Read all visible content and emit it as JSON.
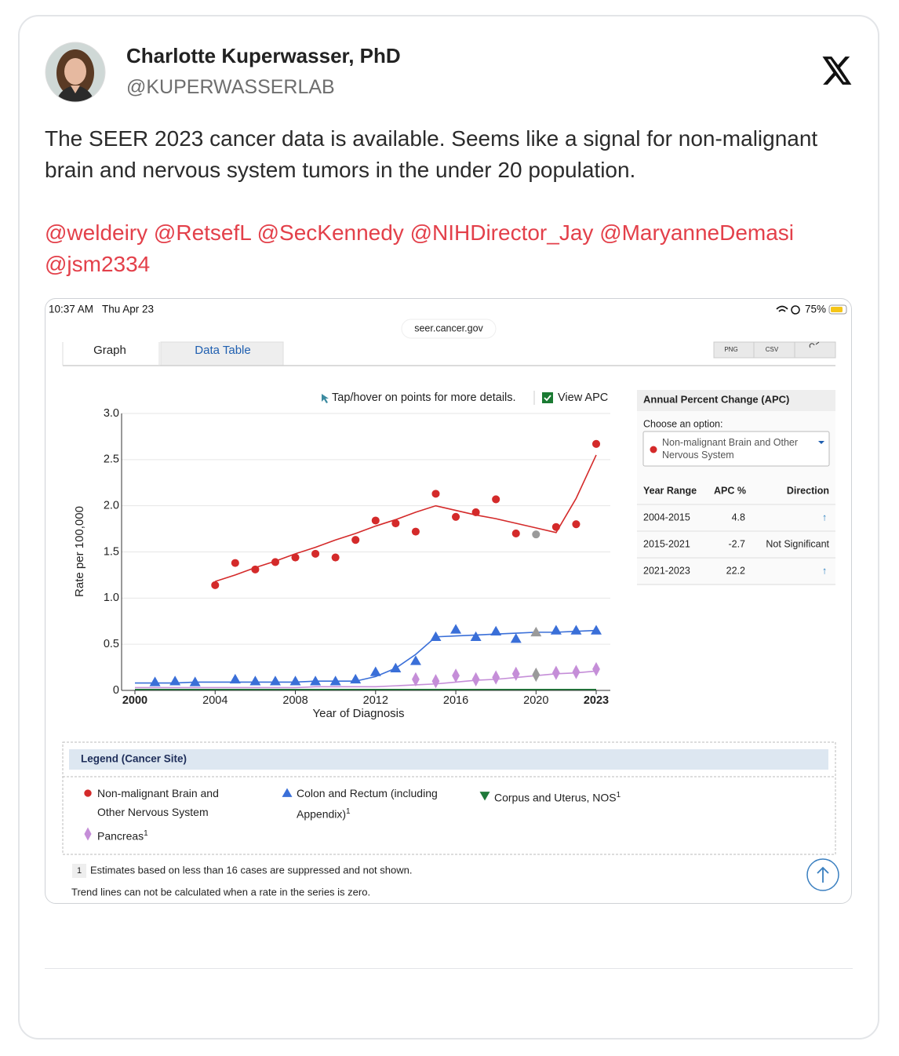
{
  "author": {
    "name": "Charlotte Kuperwasser, PhD",
    "handle": "@KUPERWASSERLAB"
  },
  "text": "The SEER 2023 cancer data is available. Seems like a signal for non-malignant brain and nervous system tumors in the under 20 population.",
  "mentions": [
    "@weldeiry",
    "@RetsefL",
    "@SecKennedy",
    "@NIHDirector_Jay",
    "@MaryanneDemasi",
    "@jsm2334"
  ],
  "screenshot": {
    "status_bar": {
      "time": "10:37 AM",
      "date": "Thu Apr 23",
      "battery": "75%"
    },
    "url": "seer.cancer.gov",
    "tabs": [
      "Graph",
      "Data Table"
    ],
    "buttons": [
      "PNG",
      "CSV"
    ],
    "hint": "Tap/hover on points for more details.",
    "view_apc": "View APC",
    "apc": {
      "title": "Annual Percent Change (APC)",
      "choose_label": "Choose an option:",
      "selected": "Non-malignant Brain and Other Nervous System",
      "columns": [
        "Year Range",
        "APC %",
        "Direction"
      ],
      "rows": [
        [
          "2004-2015",
          "4.8",
          "↑"
        ],
        [
          "2015-2021",
          "-2.7",
          "Not Significant"
        ],
        [
          "2021-2023",
          "22.2",
          "↑"
        ]
      ]
    },
    "legend_title": "Legend (Cancer Site)",
    "footnotes": [
      {
        "mark": "1",
        "text": "Estimates based on less than 16 cases are suppressed and not shown."
      },
      {
        "text": "Trend lines can not be calculated when a rate in the series is zero."
      }
    ]
  },
  "chart_data": {
    "type": "scatter",
    "xlabel": "Year of Diagnosis",
    "ylabel": "Rate per 100,000",
    "x": [
      2000,
      2001,
      2002,
      2003,
      2004,
      2005,
      2006,
      2007,
      2008,
      2009,
      2010,
      2011,
      2012,
      2013,
      2014,
      2015,
      2016,
      2017,
      2018,
      2019,
      2020,
      2021,
      2022,
      2023
    ],
    "xlim": [
      2000,
      2023
    ],
    "xticks": [
      2000,
      2004,
      2008,
      2012,
      2016,
      2020,
      2023
    ],
    "ylim": [
      0,
      3
    ],
    "yticks": [
      0,
      0.5,
      {
        "value": 1,
        "label": "1.0"
      },
      1.5,
      {
        "value": 2,
        "label": "2.0"
      },
      2.5,
      {
        "value": 3,
        "label": "3.0"
      }
    ],
    "grid": true,
    "selected_x": 2020,
    "selected_color": "#9a9a9a",
    "series": [
      {
        "name": "Non-malignant Brain and Other Nervous System",
        "color": "#d42a2a",
        "marker": "circle",
        "values": [
          null,
          null,
          null,
          null,
          1.14,
          1.38,
          1.31,
          1.39,
          1.44,
          1.48,
          1.44,
          1.63,
          1.84,
          1.81,
          1.72,
          2.13,
          1.88,
          1.93,
          2.07,
          1.7,
          1.69,
          1.77,
          1.8,
          2.67
        ],
        "trend": [
          null,
          null,
          null,
          null,
          1.18,
          1.25,
          1.33,
          1.4,
          1.48,
          1.55,
          1.63,
          1.7,
          1.78,
          1.85,
          1.93,
          2.0,
          1.95,
          1.9,
          1.86,
          1.81,
          1.76,
          1.71,
          2.08,
          2.55
        ]
      },
      {
        "name": "Colon and Rectum (including Appendix)",
        "note": "1",
        "color": "#3a6fd8",
        "marker": "triangle",
        "values": [
          null,
          0.09,
          0.1,
          0.09,
          null,
          0.12,
          0.1,
          0.1,
          0.1,
          0.1,
          0.1,
          0.12,
          0.2,
          0.24,
          0.32,
          0.58,
          0.66,
          0.58,
          0.64,
          0.56,
          0.63,
          0.65,
          0.65,
          0.65
        ],
        "trend": [
          0.08,
          0.08,
          0.08,
          0.09,
          0.09,
          0.09,
          0.09,
          0.09,
          0.09,
          0.1,
          0.1,
          0.1,
          0.15,
          0.24,
          0.39,
          0.58,
          0.59,
          0.6,
          0.61,
          0.62,
          0.63,
          0.63,
          0.64,
          0.65
        ]
      },
      {
        "name": "Corpus and Uterus, NOS",
        "note": "1",
        "color": "#1f7a3a",
        "marker": "triangle-down",
        "values": [
          null,
          null,
          null,
          null,
          null,
          null,
          null,
          null,
          null,
          null,
          null,
          null,
          null,
          null,
          null,
          null,
          null,
          null,
          null,
          null,
          null,
          null,
          null,
          null
        ],
        "trend": [
          0.01,
          0.01,
          0.01,
          0.01,
          0.01,
          0.01,
          0.01,
          0.01,
          0.01,
          0.01,
          0.01,
          0.01,
          0.01,
          0.01,
          0.01,
          0.01,
          0.01,
          0.01,
          0.01,
          0.01,
          0.01,
          0.01,
          0.01,
          0.01
        ]
      },
      {
        "name": "Pancreas",
        "note": "1",
        "color": "#c58ed8",
        "marker": "diamond",
        "values": [
          null,
          null,
          null,
          null,
          null,
          null,
          null,
          null,
          null,
          null,
          null,
          null,
          null,
          null,
          0.12,
          0.1,
          0.16,
          0.12,
          0.14,
          0.18,
          0.17,
          0.19,
          0.2,
          0.23
        ],
        "trend": [
          0.03,
          0.03,
          0.03,
          0.03,
          0.03,
          0.03,
          0.03,
          0.03,
          0.03,
          0.04,
          0.04,
          0.04,
          0.04,
          0.05,
          0.06,
          0.07,
          0.09,
          0.11,
          0.12,
          0.14,
          0.16,
          0.18,
          0.19,
          0.21
        ]
      }
    ]
  }
}
